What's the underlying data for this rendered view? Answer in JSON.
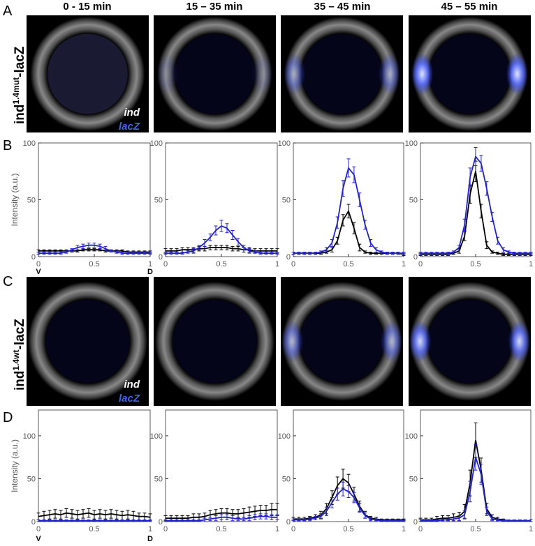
{
  "panel_letters": [
    "A",
    "B",
    "C",
    "D"
  ],
  "columns": [
    "0 - 15 min",
    "15 – 35 min",
    "35 – 45 min",
    "45 – 55 min"
  ],
  "row_labels": [
    {
      "base": "ind",
      "sup": "1.4mut",
      "suffix": "-lacZ"
    },
    {
      "base": "ind",
      "sup": "1.4wt",
      "suffix": "-lacZ"
    }
  ],
  "image_legend": {
    "ind": "ind",
    "lacZ": "lacZ"
  },
  "orientation": {
    "left": "V",
    "right": "D"
  },
  "chart_data": [
    {
      "type": "line",
      "ylabel": "Intensity (a.u.)",
      "xlim": [
        0,
        1
      ],
      "ylim": [
        0,
        100
      ],
      "xticks": [
        0,
        0.5,
        1
      ],
      "yticks": [
        0,
        50,
        100
      ],
      "x": [
        0,
        0.05,
        0.1,
        0.15,
        0.2,
        0.25,
        0.3,
        0.35,
        0.4,
        0.45,
        0.5,
        0.55,
        0.6,
        0.65,
        0.7,
        0.75,
        0.8,
        0.85,
        0.9,
        0.95,
        1
      ],
      "series": [
        {
          "name": "ind",
          "color": "#000000",
          "values": [
            5,
            5,
            5,
            5,
            5,
            5,
            5,
            5,
            6,
            6,
            6,
            6,
            5,
            5,
            5,
            5,
            4,
            4,
            4,
            4,
            4
          ],
          "errors": [
            1,
            1,
            1,
            1,
            1,
            1,
            1,
            1,
            1,
            1,
            1,
            1,
            1,
            1,
            1,
            1,
            1,
            1,
            1,
            1,
            1
          ]
        },
        {
          "name": "lacZ",
          "color": "#2222cc",
          "values": [
            3,
            3,
            3,
            3,
            3,
            4,
            6,
            8,
            9,
            10,
            10,
            9,
            7,
            5,
            4,
            3,
            3,
            3,
            3,
            3,
            3
          ],
          "errors": [
            1,
            1,
            1,
            1,
            1,
            1,
            1,
            2,
            2,
            2,
            2,
            2,
            2,
            1,
            1,
            1,
            1,
            1,
            1,
            1,
            1
          ]
        }
      ]
    },
    {
      "type": "line",
      "xlim": [
        0,
        1
      ],
      "ylim": [
        0,
        100
      ],
      "xticks": [
        0,
        0.5,
        1
      ],
      "yticks": [
        0,
        50,
        100
      ],
      "x": [
        0,
        0.05,
        0.1,
        0.15,
        0.2,
        0.25,
        0.3,
        0.35,
        0.4,
        0.45,
        0.5,
        0.55,
        0.6,
        0.65,
        0.7,
        0.75,
        0.8,
        0.85,
        0.9,
        0.95,
        1
      ],
      "series": [
        {
          "name": "ind",
          "color": "#000000",
          "values": [
            5,
            5,
            5,
            6,
            6,
            6,
            7,
            7,
            8,
            8,
            8,
            8,
            7,
            7,
            6,
            6,
            5,
            5,
            5,
            5,
            5
          ],
          "errors": [
            2,
            2,
            2,
            2,
            2,
            2,
            2,
            2,
            2,
            2,
            2,
            2,
            2,
            2,
            2,
            2,
            2,
            2,
            2,
            2,
            2
          ]
        },
        {
          "name": "lacZ",
          "color": "#2222cc",
          "values": [
            3,
            3,
            3,
            3,
            4,
            5,
            8,
            12,
            17,
            23,
            27,
            25,
            19,
            13,
            8,
            5,
            4,
            3,
            3,
            3,
            3
          ],
          "errors": [
            1,
            1,
            1,
            1,
            1,
            2,
            2,
            3,
            3,
            4,
            5,
            4,
            4,
            3,
            2,
            2,
            1,
            1,
            1,
            1,
            1
          ]
        }
      ]
    },
    {
      "type": "line",
      "xlim": [
        0,
        1
      ],
      "ylim": [
        0,
        100
      ],
      "xticks": [
        0,
        0.5,
        1
      ],
      "yticks": [
        0,
        50,
        100
      ],
      "x": [
        0,
        0.05,
        0.1,
        0.15,
        0.2,
        0.25,
        0.3,
        0.35,
        0.4,
        0.45,
        0.5,
        0.55,
        0.6,
        0.65,
        0.7,
        0.75,
        0.8,
        0.85,
        0.9,
        0.95,
        1
      ],
      "series": [
        {
          "name": "ind",
          "color": "#000000",
          "values": [
            3,
            3,
            3,
            3,
            3,
            3,
            4,
            6,
            14,
            32,
            40,
            25,
            8,
            4,
            3,
            3,
            3,
            3,
            3,
            3,
            2
          ],
          "errors": [
            1,
            1,
            1,
            1,
            1,
            1,
            1,
            2,
            3,
            5,
            6,
            5,
            3,
            1,
            1,
            1,
            1,
            1,
            1,
            1,
            1
          ]
        },
        {
          "name": "lacZ",
          "color": "#2222cc",
          "values": [
            3,
            3,
            3,
            3,
            3,
            4,
            6,
            12,
            30,
            60,
            78,
            72,
            50,
            28,
            12,
            6,
            4,
            3,
            3,
            3,
            3
          ],
          "errors": [
            1,
            1,
            1,
            1,
            1,
            1,
            2,
            3,
            5,
            7,
            8,
            7,
            6,
            4,
            3,
            2,
            1,
            1,
            1,
            1,
            1
          ]
        }
      ]
    },
    {
      "type": "line",
      "xlim": [
        0,
        1
      ],
      "ylim": [
        0,
        100
      ],
      "xticks": [
        0,
        0.5,
        1
      ],
      "yticks": [
        0,
        50,
        100
      ],
      "x": [
        0,
        0.05,
        0.1,
        0.15,
        0.2,
        0.25,
        0.3,
        0.35,
        0.4,
        0.45,
        0.5,
        0.55,
        0.6,
        0.65,
        0.7,
        0.75,
        0.8,
        0.85,
        0.9,
        0.95,
        1
      ],
      "series": [
        {
          "name": "ind",
          "color": "#000000",
          "values": [
            2,
            2,
            2,
            2,
            2,
            2,
            3,
            5,
            18,
            55,
            75,
            40,
            10,
            4,
            3,
            2,
            2,
            2,
            2,
            2,
            2
          ],
          "errors": [
            1,
            1,
            1,
            1,
            1,
            1,
            1,
            2,
            4,
            8,
            9,
            6,
            3,
            1,
            1,
            1,
            1,
            1,
            1,
            1,
            1
          ]
        },
        {
          "name": "lacZ",
          "color": "#2222cc",
          "values": [
            3,
            3,
            3,
            3,
            3,
            3,
            4,
            8,
            28,
            70,
            88,
            82,
            60,
            35,
            14,
            6,
            4,
            3,
            3,
            3,
            3
          ],
          "errors": [
            1,
            1,
            1,
            1,
            1,
            1,
            1,
            2,
            5,
            8,
            8,
            7,
            6,
            4,
            3,
            2,
            1,
            1,
            1,
            1,
            1
          ]
        }
      ]
    },
    {
      "type": "line",
      "ylabel": "Intensity (a.u.)",
      "xlim": [
        0,
        1
      ],
      "ylim": [
        0,
        130
      ],
      "xticks": [
        0,
        0.5,
        1
      ],
      "yticks": [
        0,
        50,
        100
      ],
      "x": [
        0,
        0.05,
        0.1,
        0.15,
        0.2,
        0.25,
        0.3,
        0.35,
        0.4,
        0.45,
        0.5,
        0.55,
        0.6,
        0.65,
        0.7,
        0.75,
        0.8,
        0.85,
        0.9,
        0.95,
        1
      ],
      "series": [
        {
          "name": "ind",
          "color": "#000000",
          "values": [
            6,
            7,
            8,
            9,
            8,
            10,
            9,
            8,
            9,
            10,
            8,
            9,
            8,
            9,
            8,
            7,
            8,
            7,
            6,
            6,
            5
          ],
          "errors": [
            4,
            5,
            5,
            5,
            5,
            5,
            5,
            5,
            5,
            5,
            5,
            5,
            5,
            5,
            5,
            5,
            5,
            5,
            4,
            4,
            4
          ]
        },
        {
          "name": "lacZ",
          "color": "#2222cc",
          "values": [
            1,
            1,
            1,
            1,
            1,
            1,
            1,
            1,
            1,
            1,
            1,
            1,
            1,
            1,
            1,
            1,
            1,
            1,
            1,
            1,
            1
          ],
          "errors": [
            1,
            1,
            1,
            1,
            1,
            1,
            1,
            1,
            1,
            1,
            1,
            1,
            1,
            1,
            1,
            1,
            1,
            1,
            1,
            1,
            1
          ]
        }
      ]
    },
    {
      "type": "line",
      "xlim": [
        0,
        1
      ],
      "ylim": [
        0,
        130
      ],
      "xticks": [
        0,
        0.5,
        1
      ],
      "yticks": [
        0,
        50,
        100
      ],
      "x": [
        0,
        0.05,
        0.1,
        0.15,
        0.2,
        0.25,
        0.3,
        0.35,
        0.4,
        0.45,
        0.5,
        0.55,
        0.6,
        0.65,
        0.7,
        0.75,
        0.8,
        0.85,
        0.9,
        0.95,
        1
      ],
      "series": [
        {
          "name": "ind",
          "color": "#000000",
          "values": [
            4,
            4,
            4,
            4,
            4,
            5,
            5,
            6,
            8,
            9,
            10,
            10,
            9,
            9,
            10,
            11,
            12,
            13,
            13,
            14,
            14
          ],
          "errors": [
            3,
            3,
            3,
            3,
            3,
            4,
            4,
            4,
            5,
            5,
            5,
            5,
            5,
            5,
            5,
            6,
            6,
            6,
            6,
            7,
            7
          ]
        },
        {
          "name": "lacZ",
          "color": "#2222cc",
          "values": [
            1,
            1,
            1,
            1,
            1,
            1,
            1,
            2,
            3,
            4,
            5,
            5,
            4,
            3,
            3,
            4,
            5,
            6,
            6,
            5,
            5
          ],
          "errors": [
            1,
            1,
            1,
            1,
            1,
            1,
            1,
            2,
            2,
            3,
            3,
            3,
            3,
            2,
            2,
            3,
            3,
            3,
            3,
            3,
            3
          ]
        }
      ]
    },
    {
      "type": "line",
      "xlim": [
        0,
        1
      ],
      "ylim": [
        0,
        130
      ],
      "xticks": [
        0,
        0.5,
        1
      ],
      "yticks": [
        0,
        50,
        100
      ],
      "x": [
        0,
        0.05,
        0.1,
        0.15,
        0.2,
        0.25,
        0.3,
        0.35,
        0.4,
        0.45,
        0.5,
        0.55,
        0.6,
        0.65,
        0.7,
        0.75,
        0.8,
        0.85,
        0.9,
        0.95,
        1
      ],
      "series": [
        {
          "name": "ind",
          "color": "#000000",
          "values": [
            3,
            3,
            3,
            4,
            5,
            8,
            15,
            28,
            42,
            50,
            45,
            32,
            18,
            8,
            4,
            3,
            2,
            2,
            2,
            2,
            2
          ],
          "errors": [
            2,
            2,
            2,
            2,
            3,
            4,
            6,
            8,
            10,
            11,
            10,
            8,
            6,
            4,
            2,
            2,
            1,
            1,
            1,
            1,
            1
          ]
        },
        {
          "name": "lacZ",
          "color": "#2222cc",
          "values": [
            2,
            2,
            2,
            3,
            4,
            6,
            12,
            22,
            32,
            38,
            35,
            28,
            16,
            7,
            3,
            2,
            1,
            1,
            1,
            1,
            1
          ],
          "errors": [
            1,
            1,
            1,
            2,
            2,
            3,
            5,
            6,
            7,
            8,
            7,
            6,
            5,
            3,
            2,
            1,
            1,
            1,
            1,
            1,
            1
          ]
        }
      ]
    },
    {
      "type": "line",
      "xlim": [
        0,
        1
      ],
      "ylim": [
        0,
        130
      ],
      "xticks": [
        0,
        0.5,
        1
      ],
      "yticks": [
        0,
        50,
        100
      ],
      "x": [
        0,
        0.05,
        0.1,
        0.15,
        0.2,
        0.25,
        0.3,
        0.35,
        0.4,
        0.45,
        0.5,
        0.55,
        0.6,
        0.65,
        0.7,
        0.75,
        0.8,
        0.85,
        0.9,
        0.95,
        1
      ],
      "series": [
        {
          "name": "ind",
          "color": "#000000",
          "values": [
            2,
            2,
            2,
            3,
            4,
            4,
            5,
            6,
            12,
            45,
            95,
            60,
            15,
            5,
            3,
            2,
            1,
            1,
            1,
            1,
            1
          ],
          "errors": [
            2,
            2,
            2,
            3,
            3,
            3,
            4,
            5,
            8,
            15,
            20,
            14,
            6,
            3,
            2,
            1,
            1,
            1,
            1,
            1,
            1
          ]
        },
        {
          "name": "lacZ",
          "color": "#2222cc",
          "values": [
            1,
            1,
            1,
            1,
            2,
            2,
            3,
            4,
            8,
            35,
            75,
            55,
            12,
            3,
            2,
            1,
            1,
            1,
            1,
            1,
            1
          ],
          "errors": [
            1,
            1,
            1,
            1,
            1,
            1,
            2,
            3,
            5,
            12,
            15,
            12,
            5,
            2,
            1,
            1,
            1,
            1,
            1,
            1,
            1
          ]
        }
      ]
    }
  ]
}
